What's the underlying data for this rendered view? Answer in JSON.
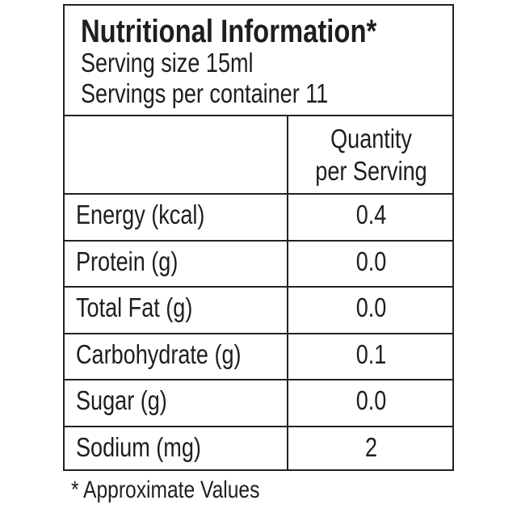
{
  "header": {
    "title": "Nutritional Information*",
    "serving_size": "Serving size 15ml",
    "servings_per_container": "Servings per container 11"
  },
  "table": {
    "column_header": [
      "Quantity",
      "per Serving"
    ],
    "rows": [
      [
        "Energy (kcal)",
        "0.4"
      ],
      [
        "Protein (g)",
        "0.0"
      ],
      [
        "Total Fat (g)",
        "0.0"
      ],
      [
        "Carbohydrate (g)",
        "0.1"
      ],
      [
        "Sugar (g)",
        "0.0"
      ],
      [
        "Sodium (mg)",
        "2"
      ]
    ]
  },
  "footnote": "* Approximate Values"
}
